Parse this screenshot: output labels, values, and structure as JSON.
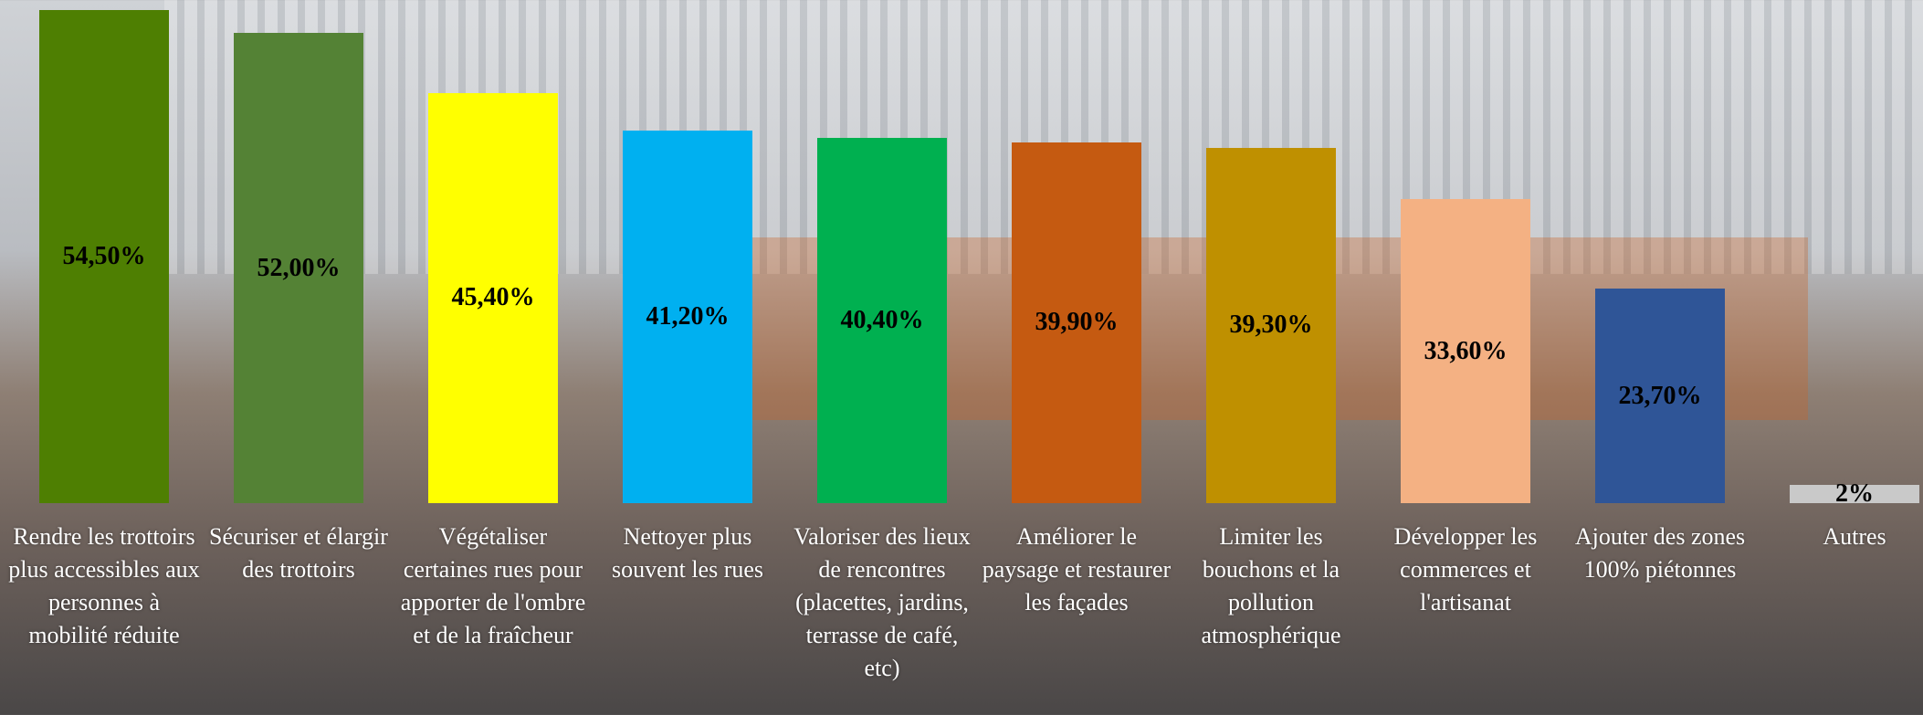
{
  "chart_data": {
    "type": "bar",
    "categories": [
      "Rendre les trottoirs plus accessibles aux personnes à mobilité réduite",
      "Sécuriser et élargir des trottoirs",
      "Végétaliser certaines rues pour apporter de l'ombre et de la fraîcheur",
      "Nettoyer plus souvent les rues",
      "Valoriser des lieux de rencontres (placettes, jardins, terrasse de café, etc)",
      "Améliorer le paysage et restaurer les façades",
      "Limiter les bouchons et la pollution atmosphérique",
      "Développer les commerces et l'artisanat",
      "Ajouter des zones 100% piétonnes",
      "Autres"
    ],
    "values": [
      54.5,
      52.0,
      45.4,
      41.2,
      40.4,
      39.9,
      39.3,
      33.6,
      23.7,
      2
    ],
    "value_labels": [
      "54,50%",
      "52,00%",
      "45,40%",
      "41,20%",
      "40,40%",
      "39,90%",
      "39,30%",
      "33,60%",
      "23,70%",
      "2%"
    ],
    "colors": [
      "#4e7f02",
      "#548235",
      "#ffff00",
      "#00b0f0",
      "#00b050",
      "#c55a11",
      "#bf9000",
      "#f4b183",
      "#2f5597",
      "#c9c9c9"
    ]
  }
}
